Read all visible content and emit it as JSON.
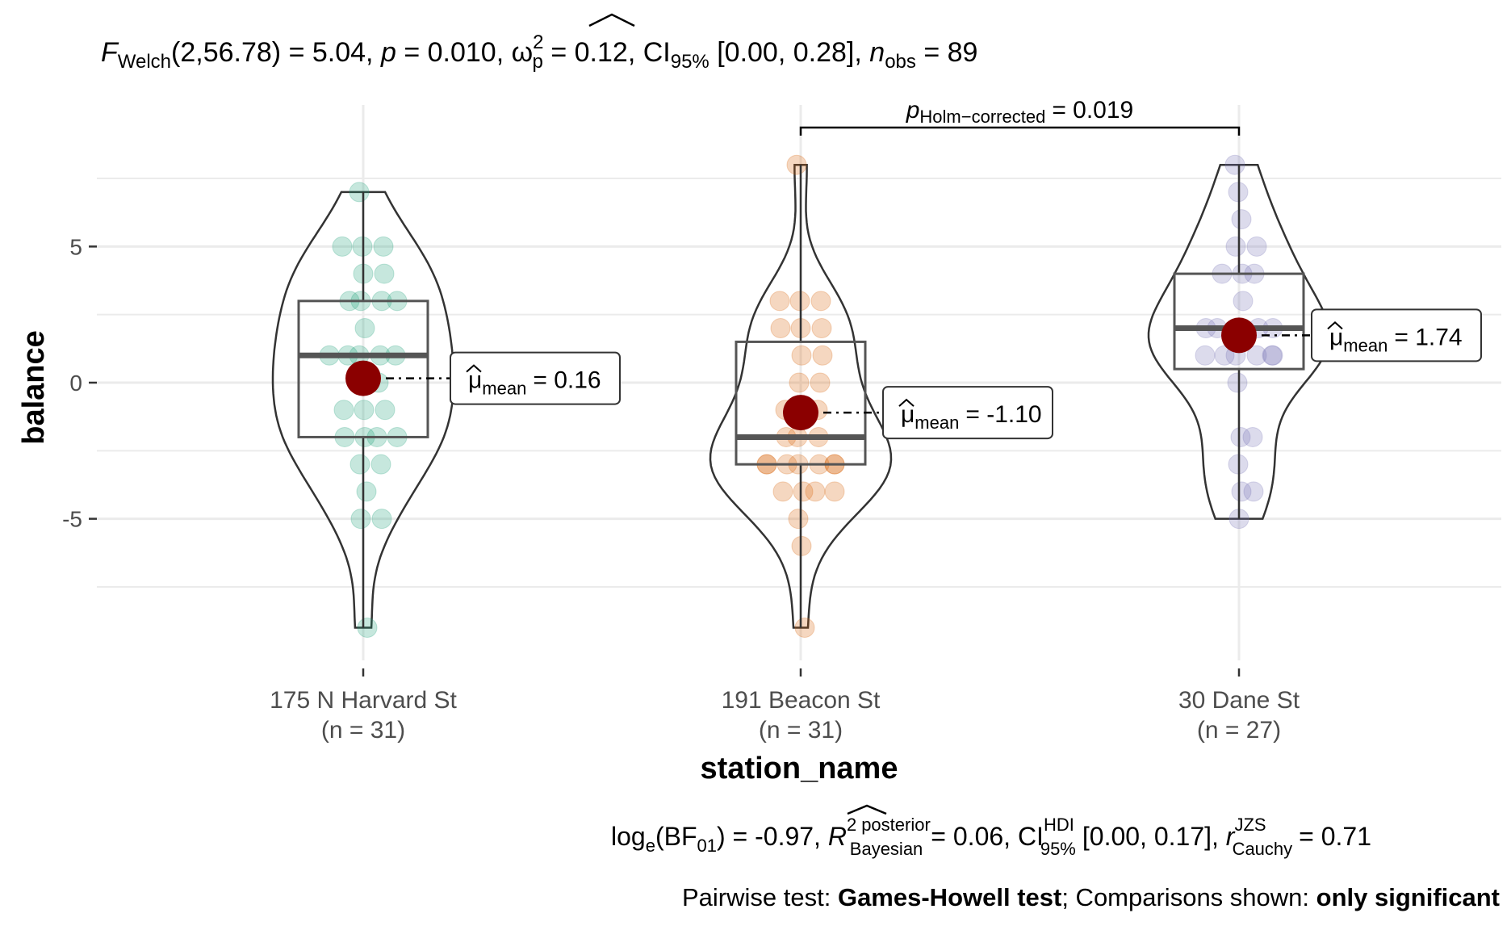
{
  "chart_data": {
    "type": "violin",
    "subtitle": {
      "test": "Welch",
      "df": "(2,56.78)",
      "stat": "= 5.04,",
      "p": "= 0.010,",
      "effect_sub": "p",
      "effect_sup": "2",
      "effect_val": "= 0.12,",
      "ci_label": "CI",
      "ci_sub": "95%",
      "ci_val": "[0.00, 0.28],",
      "n_sub": "obs",
      "n_val": "= 89"
    },
    "xlabel": "station_name",
    "ylabel": "balance",
    "ylim": [
      -10.2,
      10.2
    ],
    "yticks": [
      -5,
      0,
      5
    ],
    "groups": [
      {
        "name": "175 N Harvard St",
        "n_label": "(n = 31)",
        "color": "#1b9e77",
        "mean": 0.16,
        "mean_label": "= 0.16",
        "box": {
          "min": -9,
          "q1": -2,
          "median": 1,
          "q3": 3,
          "max": 7
        },
        "points": [
          7,
          5,
          5,
          5,
          4,
          4,
          3,
          3,
          3,
          3,
          2,
          1,
          1,
          1,
          1,
          1,
          0,
          0,
          -1,
          -1,
          -1,
          -2,
          -2,
          -2,
          -2,
          -3,
          -3,
          -4,
          -5,
          -5,
          -9
        ]
      },
      {
        "name": "191 Beacon St",
        "n_label": "(n = 31)",
        "color": "#d95f02",
        "mean": -1.1,
        "mean_label": "= -1.10",
        "box": {
          "min": -9,
          "q1": -3,
          "median": -2,
          "q3": 1.5,
          "max": 8
        },
        "points": [
          8,
          3,
          3,
          3,
          2,
          2,
          2,
          1,
          1,
          0,
          0,
          -1,
          -1,
          -1,
          -2,
          -2,
          -2,
          -3,
          -3,
          -3,
          -3,
          -3,
          -3,
          -3,
          -4,
          -4,
          -4,
          -4,
          -5,
          -6,
          -9
        ]
      },
      {
        "name": "30 Dane St",
        "n_label": "(n = 27)",
        "color": "#7570b3",
        "mean": 1.74,
        "mean_label": "= 1.74",
        "box": {
          "min": -5,
          "q1": 0.5,
          "median": 2,
          "q3": 4,
          "max": 8
        },
        "points": [
          8,
          7,
          6,
          5,
          5,
          4,
          4,
          4,
          3,
          2,
          2,
          2,
          2,
          2,
          1,
          1,
          1,
          1,
          1,
          1,
          0,
          -2,
          -2,
          -3,
          -4,
          -4,
          -5
        ]
      }
    ],
    "pairwise": {
      "from": 1,
      "to": 2,
      "label_sub": "Holm−corrected",
      "label_val": "= 0.019"
    },
    "caption": {
      "bf_prefix": "log",
      "bf_e": "e",
      "bf_mid": "(BF",
      "bf_01": "01",
      "bf_val": ") = -0.97,",
      "r_sup": "2",
      "r_sup2": "posterior",
      "r_sub": "Bayesian",
      "r_val": "= 0.06,",
      "ci_label": "CI",
      "ci_sup": "HDI",
      "ci_sub": "95%",
      "ci_val": "[0.00, 0.17],",
      "rc_sup": "JZS",
      "rc_sub": "Cauchy",
      "rc_val": "= 0.71",
      "pw_prefix": "Pairwise test: ",
      "pw_test": "Games-Howell test",
      "pw_mid": "; Comparisons shown: ",
      "pw_shown": "only significant"
    },
    "mean_sub": "mean",
    "grid": true
  }
}
